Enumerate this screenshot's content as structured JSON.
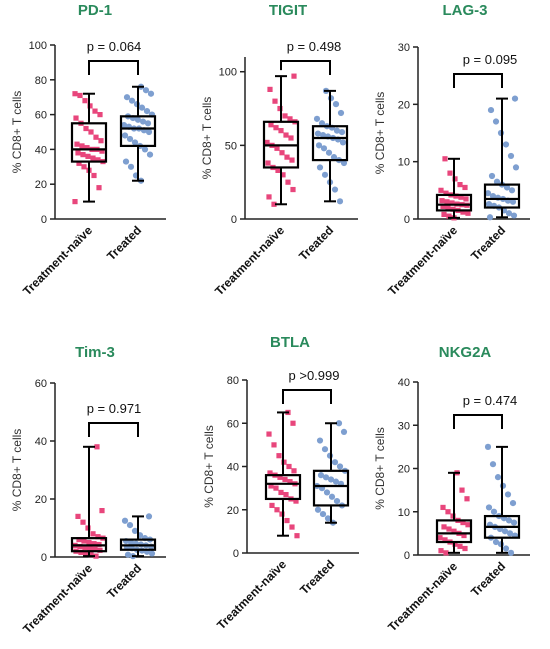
{
  "colors": {
    "title": "#2a8a5c",
    "naive": "#e8467c",
    "treated": "#7e9fd0"
  },
  "chart_data": [
    {
      "type": "box",
      "title": "PD-1",
      "ylabel": "% CD8+ T cells",
      "ylim": [
        0,
        100
      ],
      "yticks": [
        0,
        20,
        40,
        60,
        80,
        100
      ],
      "categories": [
        "Treatment-naïve",
        "Treated"
      ],
      "pvalue": "p = 0.064",
      "series": [
        {
          "min": 10,
          "q1": 33,
          "median": 40,
          "q3": 55,
          "max": 72,
          "points": [
            10,
            18,
            25,
            28,
            30,
            32,
            33,
            34,
            35,
            36,
            37,
            38,
            39,
            40,
            40,
            41,
            42,
            43,
            45,
            47,
            50,
            52,
            55,
            58,
            60,
            62,
            65,
            68,
            71,
            72
          ]
        },
        {
          "min": 22,
          "q1": 42,
          "median": 52,
          "q3": 59,
          "max": 76,
          "points": [
            22,
            25,
            30,
            33,
            37,
            40,
            42,
            44,
            46,
            48,
            50,
            51,
            52,
            52,
            53,
            54,
            55,
            56,
            57,
            58,
            59,
            60,
            62,
            64,
            66,
            68,
            70,
            72,
            74,
            76
          ]
        }
      ]
    },
    {
      "type": "box",
      "title": "TIGIT",
      "ylabel": "% CD8+ T cells",
      "ylim": [
        0,
        110
      ],
      "yticks": [
        0,
        50,
        100
      ],
      "categories": [
        "Treatment-naïve",
        "Treated"
      ],
      "pvalue": "p = 0.498",
      "series": [
        {
          "min": 10,
          "q1": 35,
          "median": 50,
          "q3": 66,
          "max": 97,
          "points": [
            10,
            15,
            20,
            25,
            30,
            33,
            35,
            38,
            40,
            42,
            45,
            48,
            50,
            52,
            55,
            57,
            60,
            62,
            64,
            66,
            68,
            70,
            75,
            80,
            88,
            97
          ]
        },
        {
          "min": 12,
          "q1": 40,
          "median": 55,
          "q3": 63,
          "max": 87,
          "points": [
            12,
            20,
            25,
            30,
            35,
            38,
            40,
            42,
            45,
            48,
            50,
            52,
            54,
            55,
            56,
            57,
            58,
            59,
            60,
            62,
            63,
            65,
            68,
            72,
            78,
            82,
            87
          ]
        }
      ]
    },
    {
      "type": "box",
      "title": "LAG-3",
      "ylabel": "% CD8+ T cells",
      "ylim": [
        0,
        30
      ],
      "yticks": [
        0,
        10,
        20,
        30
      ],
      "categories": [
        "Treatment-naïve",
        "Treated"
      ],
      "pvalue": "p = 0.095",
      "series": [
        {
          "min": 0.2,
          "q1": 1.5,
          "median": 2.5,
          "q3": 4.2,
          "max": 10.5,
          "points": [
            0.2,
            0.5,
            0.8,
            1,
            1.2,
            1.5,
            1.7,
            2,
            2.2,
            2.4,
            2.5,
            2.6,
            2.8,
            3,
            3.2,
            3.5,
            3.8,
            4,
            4.2,
            4.5,
            5,
            5.5,
            6,
            7,
            8,
            10.5
          ]
        },
        {
          "min": 0.3,
          "q1": 2,
          "median": 3.5,
          "q3": 6,
          "max": 21,
          "points": [
            0.3,
            0.6,
            1,
            1.5,
            2,
            2.3,
            2.6,
            3,
            3.2,
            3.5,
            3.7,
            4,
            4.5,
            5,
            5.5,
            6,
            6.5,
            7.5,
            9,
            11,
            13,
            15,
            17,
            19,
            21
          ]
        }
      ]
    },
    {
      "type": "box",
      "title": "Tim-3",
      "ylabel": "% CD8+ T cells",
      "ylim": [
        0,
        60
      ],
      "yticks": [
        0,
        20,
        40,
        60
      ],
      "categories": [
        "Treatment-naïve",
        "Treated"
      ],
      "pvalue": "p = 0.971",
      "series": [
        {
          "min": 0.3,
          "q1": 2,
          "median": 4,
          "q3": 6.5,
          "max": 38,
          "points": [
            0.3,
            0.8,
            1.2,
            1.6,
            2,
            2.3,
            2.7,
            3,
            3.3,
            3.6,
            4,
            4.3,
            4.6,
            5,
            5.5,
            6,
            6.5,
            7,
            8,
            10,
            12,
            14,
            16,
            38
          ]
        },
        {
          "min": 0.3,
          "q1": 2.5,
          "median": 4,
          "q3": 6,
          "max": 14,
          "points": [
            0.3,
            0.8,
            1.2,
            1.8,
            2.2,
            2.5,
            3,
            3.3,
            3.6,
            4,
            4.3,
            4.6,
            5,
            5.5,
            6,
            6.5,
            7.5,
            9,
            11,
            12.5,
            14
          ]
        }
      ]
    },
    {
      "type": "box",
      "title": "BTLA",
      "ylabel": "% CD8+ T cells",
      "ylim": [
        0,
        80
      ],
      "yticks": [
        0,
        20,
        40,
        60,
        80
      ],
      "categories": [
        "Treatment-naïve",
        "Treated"
      ],
      "pvalue": "p >0.999",
      "series": [
        {
          "min": 8,
          "q1": 25,
          "median": 32,
          "q3": 36,
          "max": 65,
          "points": [
            8,
            12,
            15,
            18,
            20,
            22,
            24,
            25,
            27,
            28,
            30,
            31,
            32,
            33,
            34,
            35,
            36,
            37,
            38,
            40,
            42,
            45,
            50,
            55,
            60,
            65
          ]
        },
        {
          "min": 14,
          "q1": 22,
          "median": 31,
          "q3": 38,
          "max": 60,
          "points": [
            14,
            16,
            18,
            20,
            22,
            24,
            26,
            28,
            30,
            31,
            32,
            33,
            34,
            35,
            36,
            38,
            40,
            42,
            45,
            48,
            52,
            56,
            60
          ]
        }
      ]
    },
    {
      "type": "box",
      "title": "NKG2A",
      "ylabel": "% CD8+ T cells",
      "ylim": [
        0,
        40
      ],
      "yticks": [
        0,
        10,
        20,
        30,
        40
      ],
      "categories": [
        "Treatment-naïve",
        "Treated"
      ],
      "pvalue": "p = 0.474",
      "series": [
        {
          "min": 0.5,
          "q1": 3,
          "median": 5,
          "q3": 8,
          "max": 19,
          "points": [
            0.5,
            1,
            1.5,
            2,
            2.5,
            3,
            3.5,
            4,
            4.5,
            5,
            5.5,
            6,
            6.5,
            7,
            7.5,
            8,
            9,
            10,
            11,
            13,
            15,
            19
          ]
        },
        {
          "min": 0.5,
          "q1": 4,
          "median": 6.5,
          "q3": 9,
          "max": 25,
          "points": [
            0.5,
            1.5,
            2.5,
            3,
            4,
            4.5,
            5,
            5.5,
            6,
            6.5,
            7,
            7.5,
            8,
            8.5,
            9,
            10,
            11,
            12,
            14,
            16,
            18,
            21,
            25
          ]
        }
      ]
    }
  ]
}
